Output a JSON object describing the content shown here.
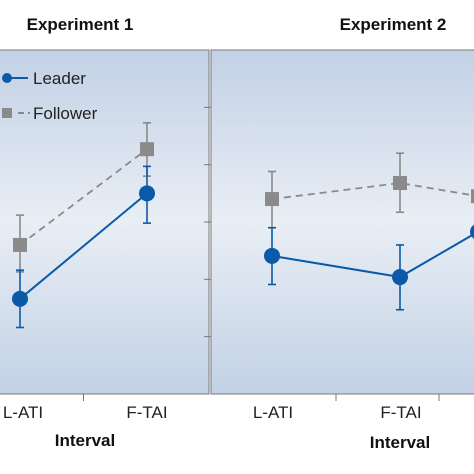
{
  "chart_data": [
    {
      "type": "line",
      "title": "Experiment 1",
      "xlabel": "Interval",
      "ylabel": "",
      "categories": [
        "L-ATI",
        "F-TAI"
      ],
      "ylim": [
        0,
        6
      ],
      "series": [
        {
          "name": "Leader",
          "color": "#0b5aa8",
          "style": "solid",
          "marker": "circle",
          "values": [
            1.66,
            3.5
          ],
          "err_low": [
            1.16,
            2.98
          ],
          "err_high": [
            2.16,
            3.97
          ]
        },
        {
          "name": "Follower",
          "color": "#8a8a8a",
          "style": "dashed",
          "marker": "square",
          "values": [
            2.6,
            4.27
          ],
          "err_low": [
            2.13,
            3.8
          ],
          "err_high": [
            3.12,
            4.73
          ]
        }
      ],
      "legend": "top-left",
      "grid": false
    },
    {
      "type": "line",
      "title": "Experiment 2",
      "xlabel": "Interval",
      "ylabel": "",
      "categories": [
        "L-ATI",
        "F-TAI",
        ""
      ],
      "ylim": [
        0,
        6
      ],
      "series": [
        {
          "name": "Leader",
          "color": "#0b5aa8",
          "style": "solid",
          "marker": "circle",
          "values": [
            2.41,
            2.04,
            2.83
          ],
          "err_low": [
            1.91,
            1.47,
            null
          ],
          "err_high": [
            2.9,
            2.6,
            null
          ]
        },
        {
          "name": "Follower",
          "color": "#8a8a8a",
          "style": "dashed",
          "marker": "square",
          "values": [
            3.4,
            3.68,
            3.45
          ],
          "err_low": [
            2.9,
            3.17,
            null
          ],
          "err_high": [
            3.88,
            4.2,
            null
          ]
        }
      ],
      "grid": false
    }
  ]
}
